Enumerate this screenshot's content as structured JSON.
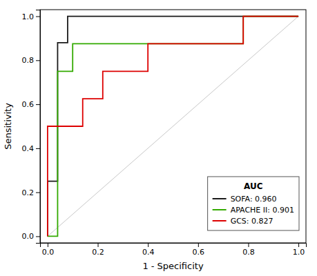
{
  "chart_data": {
    "type": "line",
    "xlabel": "1 - Specificity",
    "ylabel": "Sensitivity",
    "xlim": [
      -0.03,
      1.03
    ],
    "ylim": [
      -0.03,
      1.03
    ],
    "xticks": [
      {
        "value": 0.0,
        "label": "0.0"
      },
      0.2,
      0.4,
      0.6,
      0.8,
      {
        "value": 1.0,
        "label": "1.0"
      }
    ],
    "yticks": [
      {
        "value": 0.0,
        "label": "0.0"
      },
      0.2,
      0.4,
      0.6,
      0.8,
      {
        "value": 1.0,
        "label": "1.0"
      }
    ],
    "grid": false,
    "legend": "lower right",
    "legend_title": "AUC",
    "series": [
      {
        "color": "#c8c8c8",
        "x": [
          0,
          1
        ],
        "values": [
          0,
          1
        ]
      },
      {
        "name": "SOFA: 0.960",
        "color": "#1a1a1a",
        "x": [
          0.0,
          0.0,
          0.04,
          0.04,
          0.08,
          0.08,
          0.78,
          0.78,
          1.0
        ],
        "values": [
          0.0,
          0.25,
          0.25,
          0.88,
          0.88,
          1.0,
          1.0,
          1.0,
          1.0
        ]
      },
      {
        "name": "APACHE II: 0.901",
        "color": "#33aa00",
        "x": [
          0.0,
          0.0,
          0.04,
          0.04,
          0.1,
          0.1,
          0.6,
          0.6,
          0.78,
          0.78,
          1.0
        ],
        "values": [
          0.0,
          0.0,
          0.0,
          0.75,
          0.75,
          0.875,
          0.875,
          0.875,
          0.875,
          1.0,
          1.0
        ]
      },
      {
        "name": "GCS: 0.827",
        "color": "#dd0000",
        "x": [
          0.0,
          0.0,
          0.04,
          0.04,
          0.14,
          0.14,
          0.22,
          0.22,
          0.4,
          0.4,
          0.6,
          0.6,
          0.78,
          0.78,
          1.0
        ],
        "values": [
          0.0,
          0.5,
          0.5,
          0.5,
          0.5,
          0.625,
          0.625,
          0.75,
          0.75,
          0.875,
          0.875,
          0.875,
          0.875,
          1.0,
          1.0
        ]
      }
    ]
  }
}
